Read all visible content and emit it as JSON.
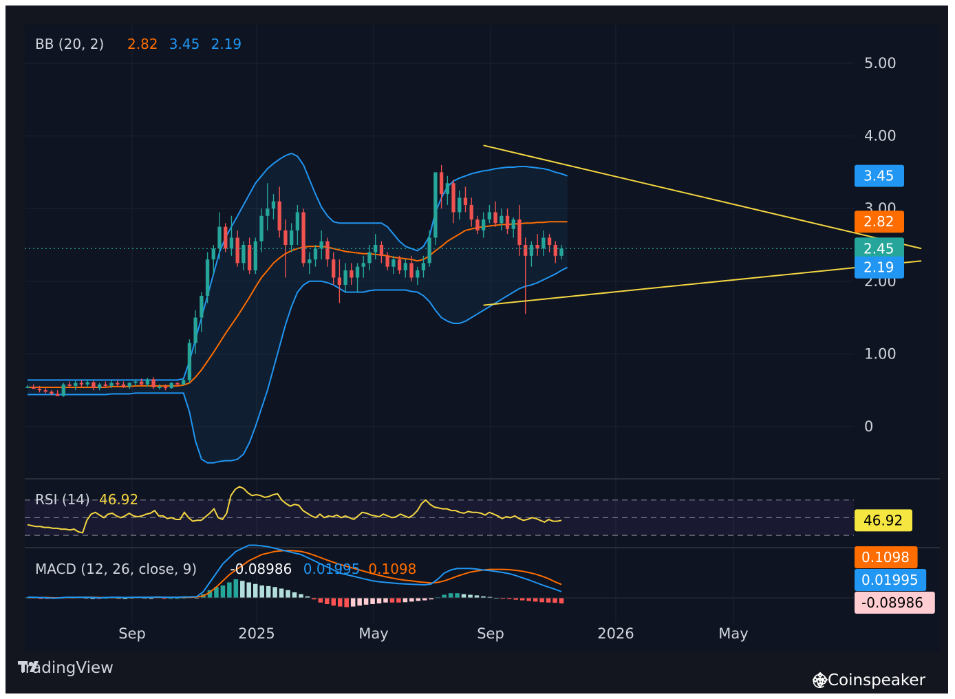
{
  "colors": {
    "background": "#0e1421",
    "grid": "#1c2230",
    "up_candle": "#26a69a",
    "down_candle": "#ef5350",
    "bb_upper": "#2196f3",
    "bb_lower": "#2196f3",
    "bb_basis": "#ff6d00",
    "trendline": "#f5d742",
    "rsi": "#f5d742",
    "macd_line": "#2196f3",
    "signal_line": "#ff6d00"
  },
  "brand": {
    "name": "TradingView",
    "icon": "tradingview-logo-icon"
  },
  "watermark": {
    "text": "@Coinspeaker",
    "icon": "binance-diamond-icon"
  },
  "chart_data": [
    {
      "type": "candlestick",
      "panel": "price",
      "legend": {
        "name": "BB (20, 2)",
        "basis": "2.82",
        "upper": "3.45",
        "lower": "2.19"
      },
      "x_ticks": [
        "Sep",
        "2025",
        "May",
        "Sep",
        "2026",
        "May"
      ],
      "y_ticks": [
        "5.00",
        "4.00",
        "3.00",
        "2.00",
        "1.00",
        "0"
      ],
      "ylim": [
        -0.7,
        5.5
      ],
      "last_price": "2.45",
      "price_labels": [
        {
          "text": "3.45",
          "value": 3.45,
          "color": "#2196f3"
        },
        {
          "text": "2.82",
          "value": 2.82,
          "color": "#ff6d00"
        },
        {
          "text": "2.45",
          "value": 2.45,
          "color": "#26a69a"
        },
        {
          "text": "2.19",
          "value": 2.19,
          "color": "#2196f3"
        }
      ],
      "candles_ohlc": [
        [
          0.55,
          0.57,
          0.53,
          0.55
        ],
        [
          0.55,
          0.58,
          0.52,
          0.52
        ],
        [
          0.52,
          0.56,
          0.47,
          0.5
        ],
        [
          0.5,
          0.53,
          0.46,
          0.48
        ],
        [
          0.48,
          0.5,
          0.43,
          0.45
        ],
        [
          0.45,
          0.5,
          0.42,
          0.42
        ],
        [
          0.42,
          0.6,
          0.41,
          0.58
        ],
        [
          0.58,
          0.62,
          0.53,
          0.56
        ],
        [
          0.56,
          0.63,
          0.5,
          0.6
        ],
        [
          0.6,
          0.64,
          0.55,
          0.58
        ],
        [
          0.58,
          0.64,
          0.54,
          0.61
        ],
        [
          0.61,
          0.63,
          0.5,
          0.53
        ],
        [
          0.53,
          0.6,
          0.5,
          0.58
        ],
        [
          0.58,
          0.62,
          0.53,
          0.56
        ],
        [
          0.56,
          0.63,
          0.53,
          0.6
        ],
        [
          0.6,
          0.64,
          0.55,
          0.58
        ],
        [
          0.58,
          0.62,
          0.53,
          0.55
        ],
        [
          0.55,
          0.61,
          0.52,
          0.6
        ],
        [
          0.6,
          0.65,
          0.56,
          0.62
        ],
        [
          0.62,
          0.66,
          0.56,
          0.58
        ],
        [
          0.58,
          0.67,
          0.55,
          0.65
        ],
        [
          0.65,
          0.68,
          0.52,
          0.54
        ],
        [
          0.54,
          0.58,
          0.51,
          0.55
        ],
        [
          0.55,
          0.58,
          0.5,
          0.53
        ],
        [
          0.53,
          0.61,
          0.52,
          0.6
        ],
        [
          0.6,
          0.61,
          0.55,
          0.58
        ],
        [
          0.58,
          0.66,
          0.57,
          0.64
        ],
        [
          0.64,
          1.2,
          0.6,
          1.15
        ],
        [
          1.15,
          1.6,
          1.0,
          1.5
        ],
        [
          1.5,
          1.85,
          1.3,
          1.8
        ],
        [
          1.8,
          2.4,
          1.7,
          2.3
        ],
        [
          2.3,
          2.5,
          2.1,
          2.45
        ],
        [
          2.45,
          2.95,
          2.3,
          2.75
        ],
        [
          2.75,
          2.8,
          2.4,
          2.45
        ],
        [
          2.45,
          2.9,
          2.35,
          2.6
        ],
        [
          2.6,
          2.7,
          2.2,
          2.25
        ],
        [
          2.25,
          2.55,
          2.15,
          2.5
        ],
        [
          2.5,
          2.6,
          2.1,
          2.15
        ],
        [
          2.15,
          2.6,
          2.1,
          2.55
        ],
        [
          2.55,
          3.0,
          2.4,
          2.9
        ],
        [
          2.9,
          3.35,
          2.7,
          3.0
        ],
        [
          3.0,
          3.2,
          2.85,
          3.1
        ],
        [
          3.1,
          3.3,
          2.6,
          2.7
        ],
        [
          2.7,
          2.85,
          2.05,
          2.5
        ],
        [
          2.5,
          2.8,
          2.4,
          2.7
        ],
        [
          2.7,
          3.05,
          2.5,
          2.95
        ],
        [
          2.95,
          3.0,
          2.2,
          2.25
        ],
        [
          2.25,
          2.4,
          2.1,
          2.3
        ],
        [
          2.3,
          2.5,
          2.2,
          2.45
        ],
        [
          2.45,
          2.7,
          2.3,
          2.55
        ],
        [
          2.55,
          2.6,
          2.2,
          2.3
        ],
        [
          2.3,
          2.4,
          1.95,
          2.05
        ],
        [
          2.05,
          2.3,
          1.7,
          1.95
        ],
        [
          1.95,
          2.25,
          1.85,
          2.15
        ],
        [
          2.15,
          2.25,
          1.95,
          2.05
        ],
        [
          2.05,
          2.25,
          1.85,
          2.2
        ],
        [
          2.2,
          2.35,
          2.05,
          2.25
        ],
        [
          2.25,
          2.5,
          2.15,
          2.4
        ],
        [
          2.4,
          2.65,
          2.3,
          2.5
        ],
        [
          2.5,
          2.55,
          2.25,
          2.35
        ],
        [
          2.35,
          2.4,
          2.15,
          2.2
        ],
        [
          2.2,
          2.35,
          2.1,
          2.3
        ],
        [
          2.3,
          2.35,
          2.1,
          2.15
        ],
        [
          2.15,
          2.3,
          2.05,
          2.25
        ],
        [
          2.25,
          2.35,
          2.0,
          2.05
        ],
        [
          2.05,
          2.2,
          1.95,
          2.15
        ],
        [
          2.15,
          2.35,
          2.05,
          2.25
        ],
        [
          2.25,
          2.7,
          2.2,
          2.6
        ],
        [
          2.6,
          3.5,
          2.5,
          3.5
        ],
        [
          3.5,
          3.6,
          3.0,
          3.2
        ],
        [
          3.2,
          3.45,
          3.05,
          3.35
        ],
        [
          3.35,
          3.4,
          2.8,
          2.95
        ],
        [
          2.95,
          3.25,
          2.85,
          3.15
        ],
        [
          3.15,
          3.3,
          2.95,
          3.05
        ],
        [
          3.05,
          3.15,
          2.75,
          2.85
        ],
        [
          2.85,
          2.9,
          2.65,
          2.7
        ],
        [
          2.7,
          2.95,
          2.6,
          2.85
        ],
        [
          2.85,
          3.05,
          2.8,
          2.95
        ],
        [
          2.95,
          3.1,
          2.75,
          2.8
        ],
        [
          2.8,
          3.0,
          2.7,
          2.9
        ],
        [
          2.9,
          3.0,
          2.65,
          2.72
        ],
        [
          2.72,
          2.88,
          2.6,
          2.85
        ],
        [
          2.85,
          3.05,
          2.35,
          2.5
        ],
        [
          2.5,
          2.6,
          1.55,
          2.35
        ],
        [
          2.35,
          2.55,
          2.2,
          2.5
        ],
        [
          2.5,
          2.65,
          2.35,
          2.45
        ],
        [
          2.45,
          2.7,
          2.35,
          2.6
        ],
        [
          2.6,
          2.65,
          2.4,
          2.5
        ],
        [
          2.5,
          2.55,
          2.25,
          2.35
        ],
        [
          2.35,
          2.5,
          2.3,
          2.45
        ]
      ],
      "bb_upper": [
        0.64,
        0.64,
        0.64,
        0.64,
        0.64,
        0.64,
        0.64,
        0.64,
        0.64,
        0.64,
        0.64,
        0.64,
        0.64,
        0.64,
        0.64,
        0.64,
        0.64,
        0.64,
        0.64,
        0.64,
        0.64,
        0.64,
        0.64,
        0.64,
        0.64,
        0.64,
        0.66,
        0.9,
        1.2,
        1.5,
        1.8,
        2.1,
        2.4,
        2.6,
        2.75,
        2.9,
        3.05,
        3.2,
        3.35,
        3.45,
        3.55,
        3.62,
        3.68,
        3.73,
        3.76,
        3.72,
        3.6,
        3.4,
        3.2,
        3.02,
        2.9,
        2.82,
        2.8,
        2.8,
        2.8,
        2.8,
        2.8,
        2.8,
        2.8,
        2.8,
        2.75,
        2.65,
        2.55,
        2.48,
        2.45,
        2.42,
        2.48,
        2.62,
        2.95,
        3.15,
        3.3,
        3.38,
        3.42,
        3.45,
        3.48,
        3.5,
        3.52,
        3.53,
        3.55,
        3.56,
        3.57,
        3.57,
        3.58,
        3.58,
        3.57,
        3.56,
        3.55,
        3.53,
        3.5,
        3.48,
        3.45
      ],
      "bb_basis": [
        0.54,
        0.54,
        0.54,
        0.54,
        0.54,
        0.54,
        0.54,
        0.54,
        0.54,
        0.54,
        0.54,
        0.54,
        0.54,
        0.54,
        0.55,
        0.55,
        0.55,
        0.55,
        0.56,
        0.56,
        0.56,
        0.56,
        0.56,
        0.56,
        0.56,
        0.56,
        0.57,
        0.6,
        0.68,
        0.78,
        0.9,
        1.02,
        1.15,
        1.28,
        1.4,
        1.52,
        1.65,
        1.78,
        1.92,
        2.05,
        2.15,
        2.25,
        2.32,
        2.38,
        2.42,
        2.45,
        2.47,
        2.48,
        2.48,
        2.48,
        2.47,
        2.45,
        2.43,
        2.41,
        2.4,
        2.39,
        2.38,
        2.38,
        2.37,
        2.36,
        2.35,
        2.33,
        2.32,
        2.31,
        2.3,
        2.28,
        2.3,
        2.35,
        2.42,
        2.48,
        2.55,
        2.6,
        2.65,
        2.7,
        2.72,
        2.74,
        2.75,
        2.76,
        2.77,
        2.78,
        2.78,
        2.79,
        2.79,
        2.8,
        2.8,
        2.81,
        2.81,
        2.82,
        2.82,
        2.82,
        2.82
      ],
      "bb_lower": [
        0.44,
        0.44,
        0.44,
        0.44,
        0.44,
        0.44,
        0.44,
        0.44,
        0.44,
        0.44,
        0.44,
        0.44,
        0.44,
        0.44,
        0.45,
        0.45,
        0.45,
        0.45,
        0.46,
        0.46,
        0.46,
        0.46,
        0.46,
        0.46,
        0.46,
        0.46,
        0.46,
        0.2,
        -0.2,
        -0.45,
        -0.5,
        -0.5,
        -0.48,
        -0.47,
        -0.47,
        -0.45,
        -0.38,
        -0.22,
        0.0,
        0.25,
        0.5,
        0.8,
        1.1,
        1.4,
        1.65,
        1.85,
        1.95,
        2.0,
        2.0,
        2.0,
        1.98,
        1.95,
        1.9,
        1.85,
        1.85,
        1.85,
        1.85,
        1.87,
        1.88,
        1.88,
        1.88,
        1.88,
        1.88,
        1.88,
        1.86,
        1.85,
        1.8,
        1.72,
        1.6,
        1.5,
        1.45,
        1.42,
        1.42,
        1.45,
        1.5,
        1.55,
        1.6,
        1.65,
        1.7,
        1.75,
        1.8,
        1.85,
        1.9,
        1.93,
        1.95,
        1.98,
        2.02,
        2.06,
        2.1,
        2.15,
        2.19
      ],
      "trendlines": [
        {
          "x": [
            76,
            149
          ],
          "y": [
            3.87,
            2.45
          ]
        },
        {
          "x": [
            76,
            149
          ],
          "y": [
            1.67,
            2.28
          ]
        }
      ]
    },
    {
      "type": "line",
      "panel": "rsi",
      "legend": {
        "name": "RSI (14)",
        "value": "46.92"
      },
      "value_label": "46.92",
      "levels": [
        70,
        50,
        30
      ],
      "ylim": [
        20,
        90
      ],
      "values": [
        42,
        41,
        40,
        40,
        39,
        39,
        38,
        38,
        37,
        37,
        36,
        37,
        34,
        33,
        47,
        54,
        56,
        53,
        50,
        54,
        55,
        52,
        50,
        52,
        55,
        52,
        51,
        52,
        54,
        55,
        58,
        52,
        52,
        49,
        50,
        48,
        48,
        56,
        50,
        46,
        47,
        47,
        51,
        55,
        60,
        50,
        48,
        55,
        75,
        82,
        85,
        83,
        78,
        75,
        76,
        75,
        73,
        74,
        76,
        77,
        70,
        66,
        63,
        65,
        64,
        58,
        55,
        52,
        50,
        54,
        50,
        52,
        51,
        53,
        50,
        52,
        50,
        48,
        52,
        56,
        55,
        53,
        52,
        51,
        54,
        52,
        50,
        51,
        54,
        52,
        50,
        53,
        58,
        66,
        70,
        65,
        62,
        61,
        60,
        60,
        58,
        58,
        56,
        55,
        57,
        56,
        56,
        55,
        53,
        56,
        54,
        52,
        49,
        51,
        50,
        52,
        49,
        47,
        48,
        50,
        49,
        47,
        45,
        48,
        46,
        46,
        47
      ],
      "x_ticks": []
    },
    {
      "type": "bar",
      "panel": "macd",
      "legend": {
        "name": "MACD (12, 26, close, 9)",
        "histogram": "-0.08986",
        "macd": "0.01995",
        "signal": "0.1098"
      },
      "value_labels": [
        {
          "text": "0.1098",
          "color": "#ff6d00"
        },
        {
          "text": "0.01995",
          "color": "#2196f3"
        },
        {
          "text": "-0.08986",
          "color": "#ffcdd2"
        }
      ],
      "ylim": [
        -0.05,
        0.18
      ],
      "histogram": [
        0.002,
        0.002,
        -0.001,
        -0.002,
        -0.002,
        0.001,
        0.003,
        0.002,
        0.002,
        0.001,
        0.0,
        -0.002,
        0.001,
        0.002,
        0.001,
        0.0,
        0.001,
        0.002,
        0.001,
        0.0,
        0.002,
        -0.001,
        0.0,
        0.0,
        0.001,
        0.002,
        0.001,
        0.012,
        0.025,
        0.035,
        0.04,
        0.05,
        0.06,
        0.055,
        0.05,
        0.045,
        0.04,
        0.038,
        0.035,
        0.03,
        0.025,
        0.018,
        0.012,
        0.005,
        -0.005,
        -0.015,
        -0.02,
        -0.025,
        -0.028,
        -0.03,
        -0.028,
        -0.025,
        -0.022,
        -0.02,
        -0.018,
        -0.015,
        -0.015,
        -0.015,
        -0.014,
        -0.012,
        -0.01,
        -0.008,
        -0.005,
        0.002,
        0.01,
        0.015,
        0.015,
        0.012,
        0.01,
        0.008,
        0.005,
        0.003,
        0.001,
        -0.002,
        -0.004,
        -0.006,
        -0.008,
        -0.01,
        -0.012,
        -0.014,
        -0.015,
        -0.016,
        -0.018
      ],
      "macd_line": [
        0.002,
        0.002,
        0.001,
        0.0,
        -0.001,
        0.0,
        0.002,
        0.002,
        0.002,
        0.002,
        0.001,
        0.0,
        0.001,
        0.002,
        0.002,
        0.001,
        0.002,
        0.002,
        0.002,
        0.002,
        0.003,
        0.002,
        0.002,
        0.002,
        0.003,
        0.003,
        0.004,
        0.02,
        0.05,
        0.08,
        0.11,
        0.13,
        0.15,
        0.16,
        0.17,
        0.17,
        0.168,
        0.165,
        0.16,
        0.155,
        0.15,
        0.145,
        0.14,
        0.13,
        0.12,
        0.11,
        0.1,
        0.09,
        0.08,
        0.075,
        0.07,
        0.065,
        0.06,
        0.055,
        0.052,
        0.05,
        0.048,
        0.046,
        0.045,
        0.044,
        0.043,
        0.042,
        0.045,
        0.06,
        0.08,
        0.09,
        0.095,
        0.095,
        0.095,
        0.093,
        0.09,
        0.088,
        0.085,
        0.082,
        0.078,
        0.072,
        0.065,
        0.058,
        0.05,
        0.042,
        0.035,
        0.028,
        0.02
      ],
      "signal_line": [
        0.001,
        0.001,
        0.001,
        0.001,
        0.0,
        0.0,
        0.001,
        0.001,
        0.002,
        0.002,
        0.002,
        0.001,
        0.001,
        0.001,
        0.001,
        0.001,
        0.001,
        0.002,
        0.002,
        0.002,
        0.002,
        0.002,
        0.002,
        0.002,
        0.002,
        0.002,
        0.003,
        0.006,
        0.018,
        0.035,
        0.055,
        0.075,
        0.09,
        0.105,
        0.12,
        0.13,
        0.14,
        0.145,
        0.15,
        0.152,
        0.153,
        0.152,
        0.15,
        0.145,
        0.138,
        0.13,
        0.122,
        0.115,
        0.108,
        0.102,
        0.096,
        0.09,
        0.084,
        0.078,
        0.073,
        0.068,
        0.064,
        0.06,
        0.057,
        0.055,
        0.052,
        0.05,
        0.048,
        0.05,
        0.055,
        0.062,
        0.07,
        0.077,
        0.083,
        0.087,
        0.09,
        0.092,
        0.092,
        0.092,
        0.091,
        0.089,
        0.086,
        0.082,
        0.077,
        0.07,
        0.062,
        0.052,
        0.043
      ]
    }
  ]
}
